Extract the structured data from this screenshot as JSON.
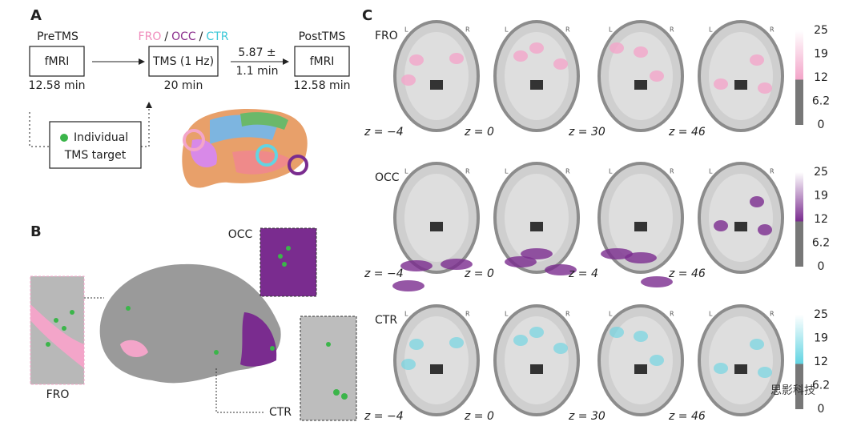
{
  "panel_a": {
    "label": "A",
    "pre_title": "PreTMS",
    "pre_box": "fMRI",
    "pre_duration": "12.58 min",
    "conditions": [
      "FRO",
      "/",
      "OCC",
      "/",
      "CTR"
    ],
    "tms_box": "TMS (1 Hz)",
    "tms_duration": "20 min",
    "interval": [
      "5.87 ±",
      "1.1 min"
    ],
    "post_title": "PostTMS",
    "post_box": "fMRI",
    "post_duration": "12.58 min",
    "target": [
      "Individual",
      "TMS target"
    ]
  },
  "panel_b": {
    "label": "B",
    "occ": "OCC",
    "fro": "FRO",
    "ctr": "CTR"
  },
  "panel_c": {
    "label": "C",
    "orientation": {
      "left": "L",
      "right": "R"
    },
    "rows": [
      {
        "name": "FRO",
        "color": "#f3a5c9",
        "slices": [
          "z = −4",
          "z = 0",
          "z = 30",
          "z = 46"
        ],
        "colorbar": [
          "25",
          "19",
          "12",
          "6.2",
          "0"
        ]
      },
      {
        "name": "OCC",
        "color": "#7a2c8f",
        "slices": [
          "z = −4",
          "z = 0",
          "z = 4",
          "z = 46"
        ],
        "colorbar": [
          "25",
          "19",
          "12",
          "6.2",
          "0"
        ]
      },
      {
        "name": "CTR",
        "color": "#62d4e2",
        "slices": [
          "z = −4",
          "z = 0",
          "z = 30",
          "z = 46"
        ],
        "colorbar": [
          "25",
          "19",
          "12",
          "6.2",
          "0"
        ]
      }
    ]
  },
  "watermark": "思影科技"
}
